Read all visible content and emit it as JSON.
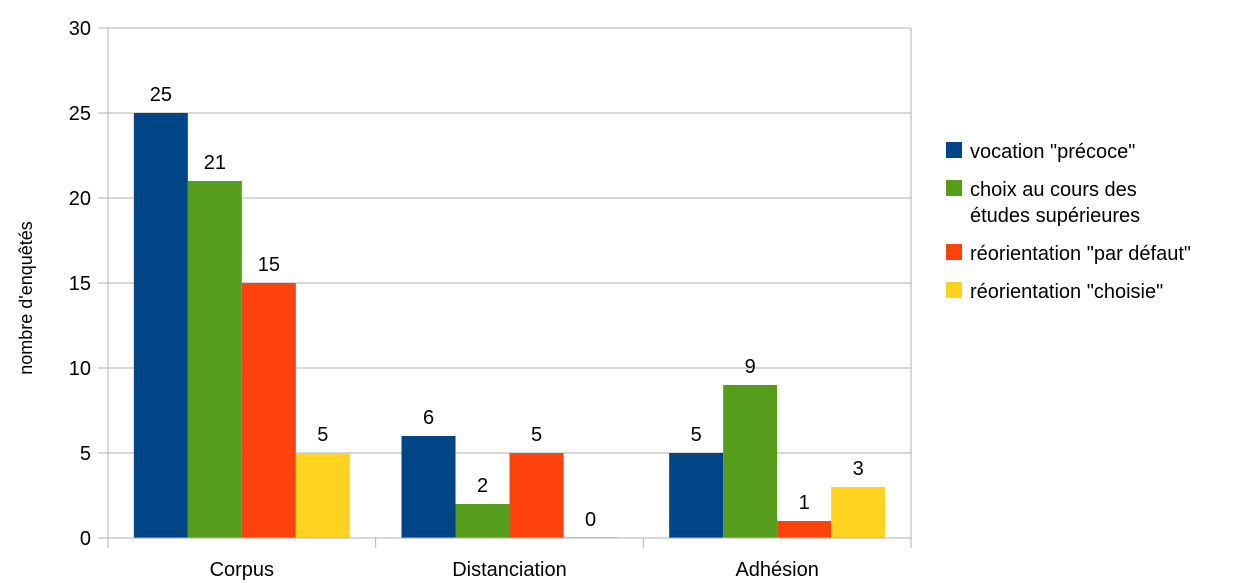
{
  "chart_data": {
    "type": "bar",
    "title": "",
    "xlabel": "",
    "ylabel": "nombre d'enquêtés",
    "ylim": [
      0,
      30
    ],
    "yticks": [
      0,
      5,
      10,
      15,
      20,
      25,
      30
    ],
    "grid": true,
    "legend_position": "right",
    "categories": [
      "Corpus",
      "Distanciation",
      "Adhésion"
    ],
    "series": [
      {
        "name": "vocation \"précoce\"",
        "color": "#004586",
        "values": [
          25,
          6,
          5
        ]
      },
      {
        "name": "choix au cours des études supérieures",
        "legend_lines": [
          "choix au cours des",
          "études supérieures"
        ],
        "color": "#579d1c",
        "values": [
          21,
          2,
          9
        ]
      },
      {
        "name": "réorientation \"par défaut\"",
        "color": "#ff420e",
        "values": [
          15,
          5,
          1
        ]
      },
      {
        "name": "réorientation \"choisie\"",
        "color": "#ffd320",
        "values": [
          5,
          0,
          3
        ]
      }
    ]
  }
}
